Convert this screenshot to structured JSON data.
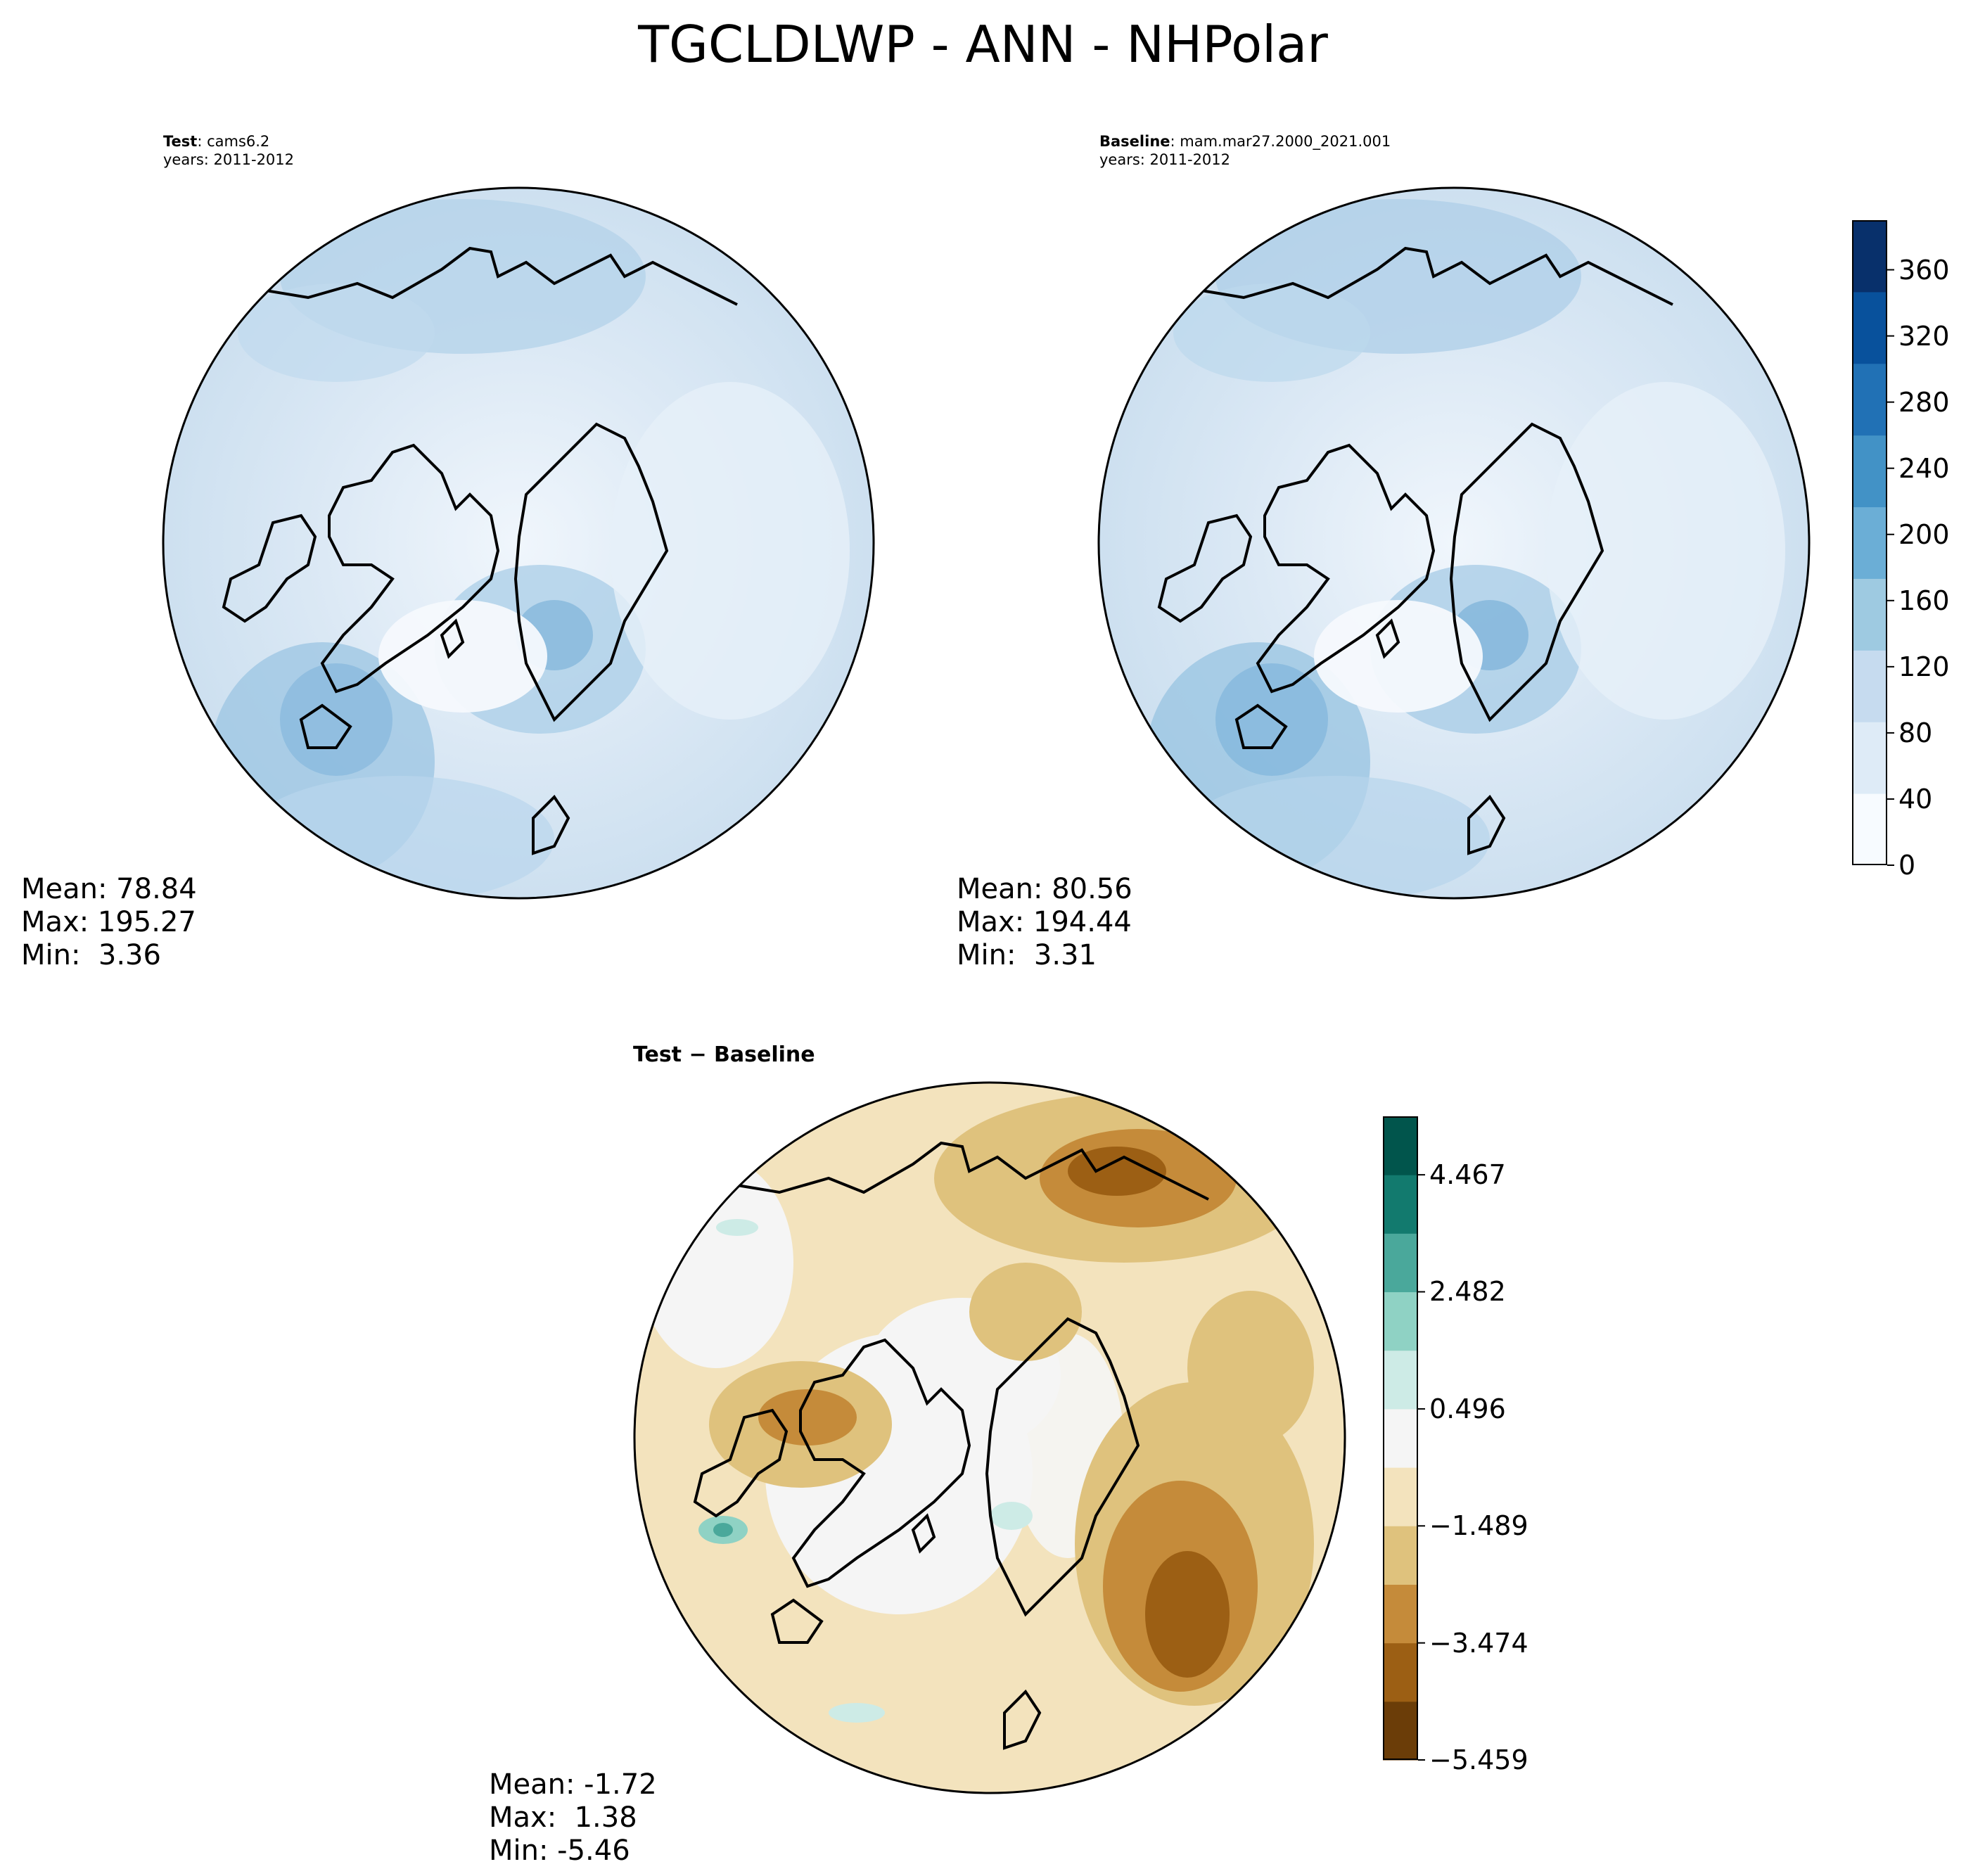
{
  "title": "TGCLDLWP - ANN - NHPolar",
  "test_panel": {
    "label": "Test",
    "case": ": cams6.2",
    "years": "years: 2011-2012",
    "mean": "Mean: 78.84",
    "max": "Max: 195.27",
    "min": "Min:  3.36"
  },
  "baseline_panel": {
    "label": "Baseline",
    "case": ": mam.mar27.2000_2021.001",
    "years": "years: 2011-2012",
    "mean": "Mean: 80.56",
    "max": "Max: 194.44",
    "min": "Min:  3.31"
  },
  "diff_panel": {
    "title": "Test − Baseline",
    "mean": "Mean: -1.72",
    "max": "Max:  1.38",
    "min": "Min: -5.46"
  },
  "top_colorbar": {
    "ticks": [
      "0",
      "40",
      "80",
      "120",
      "160",
      "200",
      "240",
      "280",
      "320",
      "360"
    ],
    "range": [
      0,
      390
    ],
    "colors": [
      "#f7fbff",
      "#deebf7",
      "#c6dbef",
      "#9ecae1",
      "#6baed6",
      "#4292c6",
      "#2171b5",
      "#08519c",
      "#08306b"
    ]
  },
  "diff_colorbar": {
    "ticks": [
      "−5.459",
      "−3.474",
      "−1.489",
      "0.496",
      "2.482",
      "4.467"
    ],
    "range": [
      -5.459,
      5.459
    ],
    "colors": [
      "#6b3d08",
      "#9c5f14",
      "#c58b3a",
      "#dfc27d",
      "#f3e3bd",
      "#f5f5f5",
      "#cdebe6",
      "#8fd2c4",
      "#4aa89b",
      "#127a6e",
      "#01554c"
    ]
  }
}
